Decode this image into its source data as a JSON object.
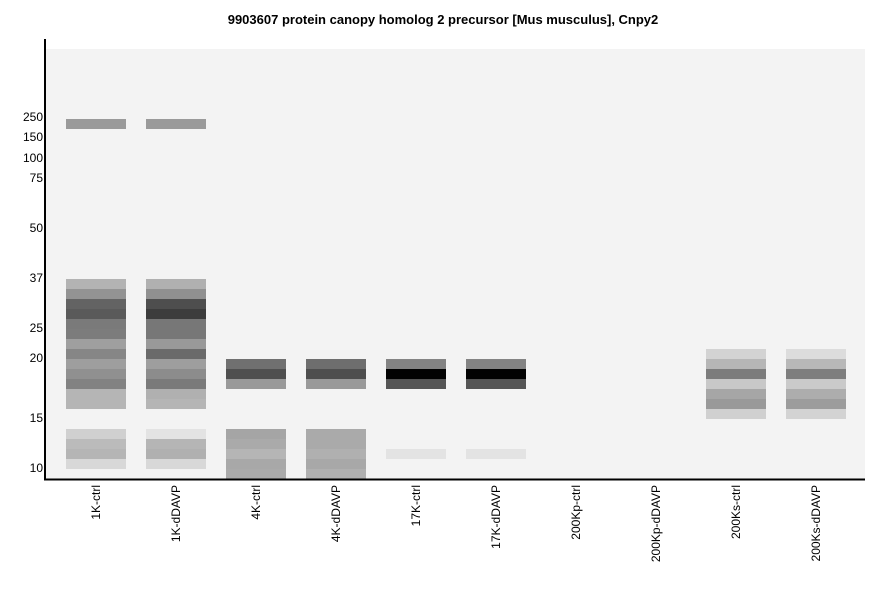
{
  "chart_data": {
    "type": "heatmap",
    "title": "9903607 protein canopy homolog 2 precursor [Mus musculus], Cnpy2",
    "xlabel": "",
    "ylabel": "",
    "slice_count": 43,
    "y_ticks": [
      {
        "label": "250",
        "slice": 6.7
      },
      {
        "label": "150",
        "slice": 8.7
      },
      {
        "label": "100",
        "slice": 10.8
      },
      {
        "label": "75",
        "slice": 12.8
      },
      {
        "label": "50",
        "slice": 17.8
      },
      {
        "label": "37",
        "slice": 22.8
      },
      {
        "label": "25",
        "slice": 27.8
      },
      {
        "label": "20",
        "slice": 30.8
      },
      {
        "label": "15",
        "slice": 36.8
      },
      {
        "label": "10",
        "slice": 41.8
      }
    ],
    "lanes": [
      {
        "label": "1K-ctrl",
        "bands": [
          [
            7,
            154
          ],
          [
            23,
            179
          ],
          [
            24,
            147
          ],
          [
            25,
            99
          ],
          [
            26,
            90
          ],
          [
            27,
            122
          ],
          [
            28,
            124
          ],
          [
            29,
            159
          ],
          [
            30,
            134
          ],
          [
            31,
            158
          ],
          [
            32,
            144
          ],
          [
            33,
            130
          ],
          [
            34,
            181
          ],
          [
            35,
            181
          ],
          [
            38,
            208
          ],
          [
            39,
            187
          ],
          [
            40,
            181
          ],
          [
            41,
            216
          ]
        ]
      },
      {
        "label": "1K-dDAVP",
        "bands": [
          [
            7,
            154
          ],
          [
            23,
            176
          ],
          [
            24,
            144
          ],
          [
            25,
            78
          ],
          [
            26,
            60
          ],
          [
            27,
            119
          ],
          [
            28,
            119
          ],
          [
            29,
            153
          ],
          [
            30,
            106
          ],
          [
            31,
            158
          ],
          [
            32,
            140
          ],
          [
            33,
            122
          ],
          [
            34,
            176
          ],
          [
            35,
            181
          ],
          [
            38,
            227
          ],
          [
            39,
            181
          ],
          [
            40,
            176
          ],
          [
            41,
            216
          ]
        ]
      },
      {
        "label": "4K-ctrl",
        "bands": [
          [
            31,
            112
          ],
          [
            32,
            79
          ],
          [
            33,
            153
          ],
          [
            38,
            165
          ],
          [
            39,
            170
          ],
          [
            40,
            181
          ],
          [
            41,
            168
          ],
          [
            42,
            170
          ]
        ]
      },
      {
        "label": "4K-dDAVP",
        "bands": [
          [
            31,
            110
          ],
          [
            32,
            78
          ],
          [
            33,
            153
          ],
          [
            38,
            170
          ],
          [
            39,
            170
          ],
          [
            40,
            176
          ],
          [
            41,
            168
          ],
          [
            42,
            176
          ]
        ]
      },
      {
        "label": "17K-ctrl",
        "bands": [
          [
            31,
            131
          ],
          [
            32,
            3
          ],
          [
            33,
            85
          ],
          [
            40,
            227
          ]
        ]
      },
      {
        "label": "17K-dDAVP",
        "bands": [
          [
            31,
            131
          ],
          [
            32,
            3
          ],
          [
            33,
            85
          ],
          [
            40,
            227
          ]
        ]
      },
      {
        "label": "200Kp-ctrl",
        "bands": []
      },
      {
        "label": "200Kp-dDAVP",
        "bands": []
      },
      {
        "label": "200Ks-ctrl",
        "bands": [
          [
            30,
            211
          ],
          [
            31,
            182
          ],
          [
            32,
            124
          ],
          [
            33,
            200
          ],
          [
            34,
            166
          ],
          [
            35,
            153
          ],
          [
            36,
            208
          ]
        ]
      },
      {
        "label": "200Ks-dDAVP",
        "bands": [
          [
            30,
            220
          ],
          [
            31,
            184
          ],
          [
            32,
            126
          ],
          [
            33,
            202
          ],
          [
            34,
            173
          ],
          [
            35,
            156
          ],
          [
            36,
            211
          ]
        ]
      }
    ]
  }
}
